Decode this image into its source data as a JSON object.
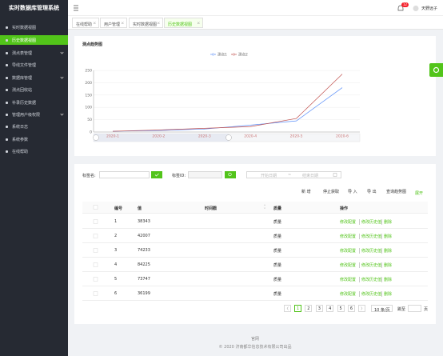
{
  "sidebar": {
    "title": "实时数据库管理系统",
    "menu": [
      "实时数据视图",
      "历史数据视图",
      "测点表管理",
      "导线文件管理",
      "数据库管理",
      "测点回收站",
      "补录历史数据",
      "管理用户级权限",
      "系统日志",
      "系统参数",
      "在线帮助"
    ]
  },
  "header": {
    "badge": "12",
    "user": "天野远子"
  },
  "tabs": [
    "在线帮助",
    "用户管理",
    "实时数据视图",
    "历史数据视图"
  ],
  "trend": {
    "type": "line",
    "title": "测点趋势图",
    "categories": [
      "2020-1",
      "2020-2",
      "2020-3",
      "2020-4",
      "2020-5",
      "2020-6"
    ],
    "series": [
      {
        "name": "测点1",
        "color": "#5b8ff9",
        "values": [
          3,
          6,
          12,
          28,
          45,
          180
        ]
      },
      {
        "name": "测点2",
        "color": "#c0504d",
        "values": [
          3,
          8,
          15,
          22,
          55,
          235
        ]
      }
    ],
    "ylim": [
      0,
      250
    ],
    "yticks": [
      0,
      50,
      100,
      150,
      200,
      250
    ],
    "grid": true
  },
  "filter": {
    "name_label": "标签名:",
    "id_label": "标签ID:",
    "start_placeholder": "开始日期",
    "separator": "~",
    "end_placeholder": "结束日期"
  },
  "toolbar": {
    "buttons": [
      "新 增",
      "停止获取",
      "导 入",
      "导 出",
      "查询趋势图"
    ],
    "expand": "展开"
  },
  "table": {
    "headers": [
      "编号",
      "值",
      "时间戳",
      "质量",
      "操作"
    ],
    "rows": [
      [
        1,
        38343,
        "质量"
      ],
      [
        2,
        42007,
        "质量"
      ],
      [
        3,
        74233,
        "质量"
      ],
      [
        4,
        84225,
        "质量"
      ],
      [
        5,
        73747,
        "质量"
      ],
      [
        6,
        36199,
        "质量"
      ]
    ],
    "actions": [
      "修改配置",
      "修改历史值",
      "删除"
    ]
  },
  "pagination": {
    "pages": [
      "1",
      "2",
      "3",
      "4",
      "5",
      "6"
    ],
    "page_size": "10 条/页",
    "jump": "跳至",
    "page_unit": "页"
  },
  "footer": {
    "link": "官网",
    "copyright": "© 2020 济南都华信息技术有限公司出品"
  }
}
